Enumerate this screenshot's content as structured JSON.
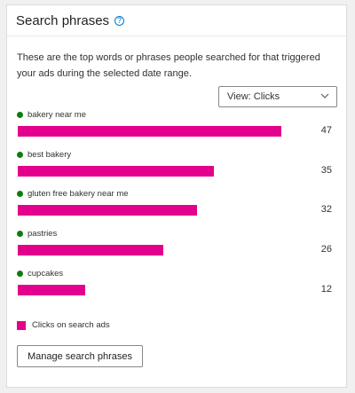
{
  "header": {
    "title": "Search phrases",
    "help_icon": "help-circle-icon",
    "help_glyph": "?"
  },
  "description": "These are the top words or phrases people searched for that triggered your ads during the selected date range.",
  "view_select": {
    "label": "View: Clicks",
    "icon": "chevron-down-icon"
  },
  "colors": {
    "bar": "#e3008c",
    "dot": "#107c10"
  },
  "chart_data": {
    "type": "bar",
    "orientation": "horizontal",
    "categories": [
      "bakery near me",
      "best bakery",
      "gluten free bakery near me",
      "pastries",
      "cupcakes"
    ],
    "series": [
      {
        "name": "Clicks on search ads",
        "values": [
          47,
          35,
          32,
          26,
          12
        ]
      }
    ],
    "value_labels": [
      "47",
      "35",
      "32",
      "26",
      "12"
    ],
    "legend": "bottom-left",
    "grid": false
  },
  "legend": {
    "label": "Clicks on search ads"
  },
  "actions": {
    "manage_label": "Manage search phrases"
  }
}
